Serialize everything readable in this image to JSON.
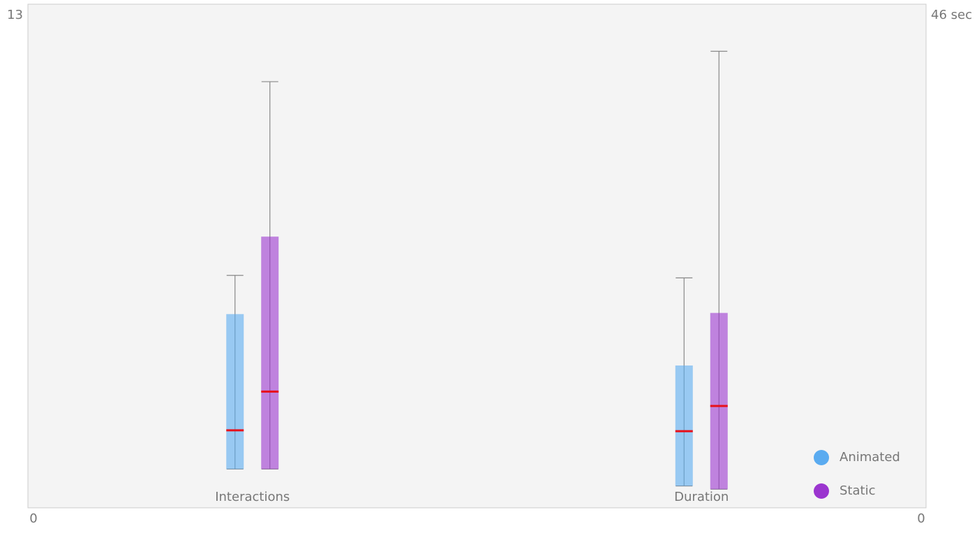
{
  "chart_data": {
    "type": "box",
    "categories": [
      "Interactions",
      "Duration"
    ],
    "category_axes": [
      "y",
      "y2"
    ],
    "ylim": [
      0,
      13
    ],
    "yticks": [
      0,
      13
    ],
    "y2lim": [
      0,
      46
    ],
    "y2ticks": [
      0,
      {
        "value": 46,
        "label": "46 sec"
      }
    ],
    "legend": "bottom-right",
    "series": [
      {
        "name": "Animated",
        "color": "#5aabf0",
        "values": [
          {
            "min": 1,
            "q1": 1,
            "median": 2,
            "q3": 5,
            "max": 6
          },
          {
            "min": 2,
            "q1": 2,
            "median": 7,
            "q3": 13,
            "max": 21
          }
        ]
      },
      {
        "name": "Static",
        "color": "#9b35cf",
        "values": [
          {
            "min": 1,
            "q1": 1,
            "median": 3,
            "q3": 7,
            "max": 11
          },
          {
            "min": 1.7,
            "q1": 1.7,
            "median": 9.3,
            "q3": 17.8,
            "max": 41.7
          }
        ]
      }
    ]
  }
}
